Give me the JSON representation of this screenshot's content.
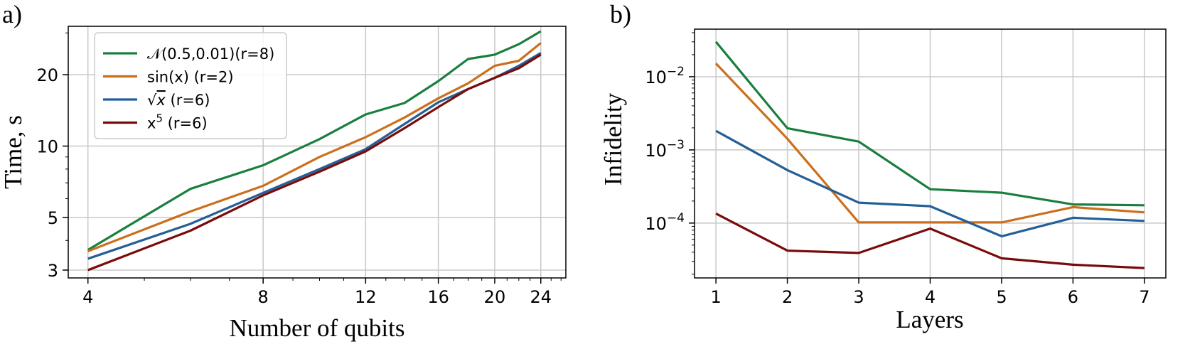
{
  "chart_data": [
    {
      "panel_label": "a)",
      "type": "line",
      "xlabel": "Number of qubits",
      "ylabel": "Time, s",
      "xscale": "log",
      "yscale": "log",
      "xlim": [
        3.7,
        26.5
      ],
      "ylim": [
        2.78,
        32
      ],
      "xticks": [
        4,
        8,
        12,
        16,
        20,
        24
      ],
      "xtick_labels": [
        "4",
        "8",
        "12",
        "16",
        "20",
        "24"
      ],
      "yticks": [
        3,
        5,
        10,
        20
      ],
      "ytick_labels": [
        "3",
        "5",
        "10",
        "20"
      ],
      "grid": true,
      "legend_position": "upper-left",
      "series": [
        {
          "name": "𝒩(0.5,0.01)(r=8)",
          "name_base": "𝒩(0.5,0.01)(r=8)",
          "color": "#1a7f3e",
          "x": [
            4,
            6,
            8,
            10,
            12,
            14,
            16,
            18,
            20,
            22,
            24
          ],
          "y": [
            3.65,
            6.6,
            8.3,
            10.7,
            13.6,
            15.2,
            18.8,
            23.3,
            24.3,
            26.9,
            30.5
          ]
        },
        {
          "name": "sin(x) (r=2)",
          "name_base": "sin(x) (r=2)",
          "color": "#cc6f1d",
          "x": [
            4,
            6,
            8,
            10,
            12,
            14,
            16,
            18,
            20,
            22,
            24
          ],
          "y": [
            3.6,
            5.3,
            6.8,
            9.0,
            10.9,
            13.2,
            15.9,
            18.4,
            21.8,
            22.9,
            27.2
          ]
        },
        {
          "name": "√x (r=6)",
          "name_base": "√x",
          "name_suffix": " (r=6)",
          "color": "#245f96",
          "x": [
            4,
            6,
            8,
            10,
            12,
            14,
            16,
            18,
            20,
            22,
            24
          ],
          "y": [
            3.35,
            4.7,
            6.35,
            8.0,
            9.7,
            12.4,
            15.3,
            17.4,
            19.4,
            21.8,
            24.7
          ]
        },
        {
          "name": "x⁵ (r=6)",
          "name_base": "x",
          "name_sup": "5",
          "name_suffix": " (r=6)",
          "color": "#7a0b0b",
          "x": [
            4,
            6,
            8,
            10,
            12,
            14,
            16,
            18,
            20,
            22,
            24
          ],
          "y": [
            3.0,
            4.4,
            6.2,
            7.8,
            9.5,
            11.9,
            14.6,
            17.4,
            19.4,
            21.3,
            24.3
          ]
        }
      ]
    },
    {
      "panel_label": "b)",
      "type": "line",
      "xlabel": "Layers",
      "ylabel": "Infidelity",
      "xscale": "linear",
      "yscale": "log",
      "xlim": [
        0.7,
        7.3
      ],
      "ylim": [
        1.78e-05,
        0.0447
      ],
      "xticks": [
        1,
        2,
        3,
        4,
        5,
        6,
        7
      ],
      "xtick_labels": [
        "1",
        "2",
        "3",
        "4",
        "5",
        "6",
        "7"
      ],
      "yticks": [
        0.0001,
        0.001,
        0.01
      ],
      "ytick_labels": [
        {
          "base": "10",
          "exp": "−4"
        },
        {
          "base": "10",
          "exp": "−3"
        },
        {
          "base": "10",
          "exp": "−2"
        }
      ],
      "grid": true,
      "series": [
        {
          "color": "#1a7f3e",
          "x": [
            1,
            2,
            3,
            4,
            5,
            6,
            7
          ],
          "y": [
            0.03,
            0.00198,
            0.0013,
            0.00029,
            0.00026,
            0.00018,
            0.000175
          ]
        },
        {
          "color": "#cc6f1d",
          "x": [
            1,
            2,
            3,
            4,
            5,
            6,
            7
          ],
          "y": [
            0.0152,
            0.00142,
            0.000102,
            0.000102,
            0.000102,
            0.000165,
            0.00014
          ]
        },
        {
          "color": "#245f96",
          "x": [
            1,
            2,
            3,
            4,
            5,
            6,
            7
          ],
          "y": [
            0.00182,
            0.00053,
            0.00019,
            0.00017,
            6.6e-05,
            0.000118,
            0.000107
          ]
        },
        {
          "color": "#7a0b0b",
          "x": [
            1,
            2,
            3,
            4,
            5,
            6,
            7
          ],
          "y": [
            0.000135,
            4.2e-05,
            3.9e-05,
            8.4e-05,
            3.3e-05,
            2.7e-05,
            2.43e-05
          ]
        }
      ]
    }
  ]
}
